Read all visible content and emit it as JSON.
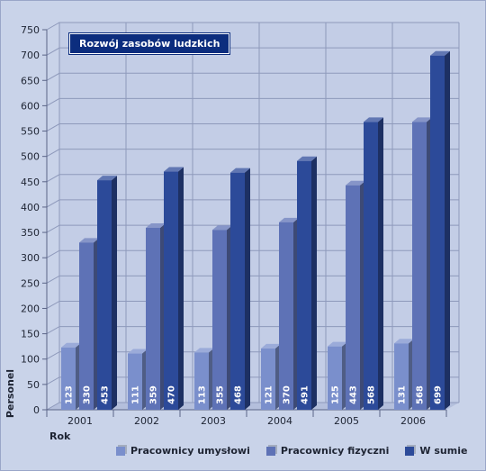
{
  "chart_data": {
    "type": "bar",
    "title": "Rozwój zasobów ludzkich",
    "xlabel": "Rok",
    "ylabel": "Personel",
    "categories": [
      "2001",
      "2002",
      "2003",
      "2004",
      "2005",
      "2006"
    ],
    "ylim": [
      0,
      750
    ],
    "yticks": [
      0,
      50,
      100,
      150,
      200,
      250,
      300,
      350,
      400,
      450,
      500,
      550,
      600,
      650,
      700,
      750
    ],
    "grid": true,
    "legend_position": "bottom",
    "series": [
      {
        "name": "Pracownicy umysłowi",
        "values": [
          123,
          111,
          113,
          121,
          125,
          131
        ],
        "color": "#7a8fcc"
      },
      {
        "name": "Pracownicy fizyczni",
        "values": [
          330,
          359,
          355,
          370,
          443,
          568
        ],
        "color": "#5e72b6"
      },
      {
        "name": "W sumie",
        "values": [
          453,
          470,
          468,
          491,
          568,
          699
        ],
        "color": "#2c4a99"
      }
    ]
  }
}
